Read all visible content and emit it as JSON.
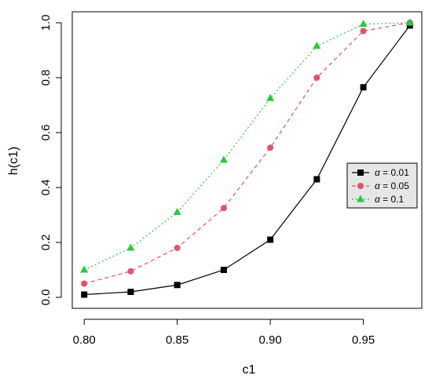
{
  "chart_data": {
    "type": "line",
    "xlabel": "c1",
    "ylabel": "h(c1)",
    "x": [
      0.8,
      0.825,
      0.85,
      0.875,
      0.9,
      0.925,
      0.95,
      0.975
    ],
    "xticks": [
      "0.80",
      "0.85",
      "0.90",
      "0.95"
    ],
    "xtick_values": [
      0.8,
      0.85,
      0.9,
      0.95
    ],
    "yticks": [
      "0.0",
      "0.2",
      "0.4",
      "0.6",
      "0.8",
      "1.0"
    ],
    "ytick_values": [
      0,
      0.2,
      0.4,
      0.6,
      0.8,
      1.0
    ],
    "xlim": [
      0.7936,
      0.9814
    ],
    "ylim": [
      -0.04,
      1.04
    ],
    "grid": false,
    "legend_position": "right",
    "series": [
      {
        "name": "α = 0.01",
        "alpha_symbol": "α",
        "alpha_value": "= 0.01",
        "color": "#000000",
        "marker": "square",
        "line_style": "solid",
        "values": [
          0.01,
          0.02,
          0.045,
          0.1,
          0.21,
          0.43,
          0.765,
          0.99
        ]
      },
      {
        "name": "α = 0.05",
        "alpha_symbol": "α",
        "alpha_value": "= 0.05",
        "color": "#DF536B",
        "marker": "circle",
        "line_style": "dashed",
        "values": [
          0.05,
          0.095,
          0.18,
          0.325,
          0.545,
          0.8,
          0.97,
          1.0
        ]
      },
      {
        "name": "α = 0.1",
        "alpha_symbol": "α",
        "alpha_value": "= 0.1",
        "color": "#28C93F",
        "marker": "triangle",
        "line_style": "dotted",
        "values": [
          0.1,
          0.18,
          0.31,
          0.5,
          0.725,
          0.915,
          0.995,
          1.0
        ]
      }
    ]
  }
}
